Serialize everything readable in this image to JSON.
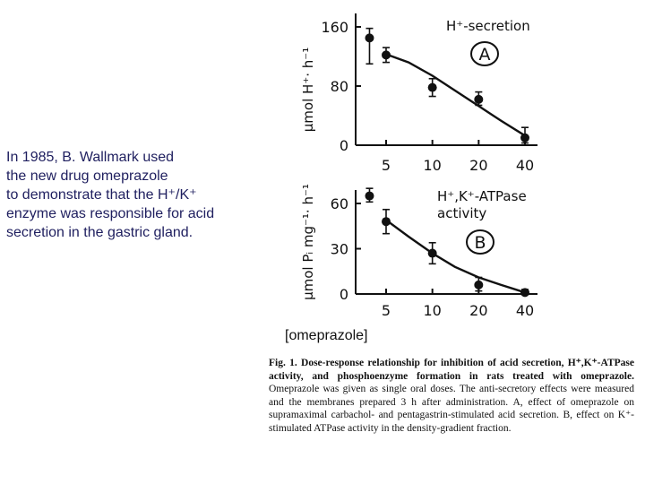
{
  "intro_lines": [
    "In 1985, B. Wallmark used",
    "the new drug omeprazole",
    "to demonstrate that the H⁺/K⁺",
    "enzyme was responsible for acid",
    "secretion in the gastric gland."
  ],
  "x_axis_label": "[omeprazole]",
  "caption": {
    "fig_label": "Fig. 1.",
    "title": "Dose-response relationship for inhibition of acid secretion, H⁺,K⁺-ATPase activity, and phosphoenzyme formation in rats treated with omeprazole.",
    "body": "Omeprazole was given as single oral doses. The anti-secretory effects were measured and the membranes prepared 3 h after administration. A, effect of omeprazole on supramaximal carbachol- and pentagastrin-stimulated acid secretion. B, effect on K⁺-stimulated ATPase activity in the density-gradient fraction."
  },
  "chart_data": [
    {
      "type": "scatter",
      "panel_letter": "A",
      "title": "H⁺-secretion",
      "ylabel": "μmol H⁺· h⁻¹",
      "x_scale": "log",
      "x": [
        5,
        10,
        20,
        40
      ],
      "x_tick_labels": [
        "5",
        "10",
        "20",
        "40"
      ],
      "y_ticks": [
        0,
        80,
        160
      ],
      "ylim": [
        0,
        170
      ],
      "points": [
        {
          "x": 3.9,
          "y": 145,
          "err_low": 110,
          "err_high": 158
        },
        {
          "x": 5,
          "y": 122,
          "err_low": 112,
          "err_high": 132
        },
        {
          "x": 10,
          "y": 78,
          "err_low": 66,
          "err_high": 90
        },
        {
          "x": 20,
          "y": 62,
          "err_low": 54,
          "err_high": 72
        },
        {
          "x": 40,
          "y": 10,
          "err_low": 3,
          "err_high": 24
        }
      ],
      "fit": [
        [
          5,
          123
        ],
        [
          7,
          112
        ],
        [
          10,
          94
        ],
        [
          14,
          74
        ],
        [
          20,
          53
        ],
        [
          28,
          33
        ],
        [
          40,
          13
        ]
      ],
      "grid": false
    },
    {
      "type": "scatter",
      "panel_letter": "B",
      "title": "H⁺,K⁺-ATPase activity",
      "title_lines": [
        "H⁺,K⁺-ATPase",
        "activity"
      ],
      "ylabel": "μmol Pᵢ mg⁻¹· h⁻¹",
      "x_scale": "log",
      "x": [
        5,
        10,
        20,
        40
      ],
      "x_tick_labels": [
        "5",
        "10",
        "20",
        "40"
      ],
      "y_ticks": [
        0,
        30,
        60
      ],
      "ylim": [
        0,
        70
      ],
      "points": [
        {
          "x": 3.9,
          "y": 65,
          "err_low": 61,
          "err_high": 70
        },
        {
          "x": 5,
          "y": 48,
          "err_low": 40,
          "err_high": 56
        },
        {
          "x": 10,
          "y": 27,
          "err_low": 20,
          "err_high": 34
        },
        {
          "x": 20,
          "y": 6,
          "err_low": 2,
          "err_high": 11
        },
        {
          "x": 40,
          "y": 1,
          "err_low": 0,
          "err_high": 3
        }
      ],
      "fit": [
        [
          5,
          49
        ],
        [
          7,
          38
        ],
        [
          10,
          27
        ],
        [
          14,
          18
        ],
        [
          20,
          11
        ],
        [
          28,
          6
        ],
        [
          40,
          1
        ]
      ],
      "grid": false
    }
  ]
}
